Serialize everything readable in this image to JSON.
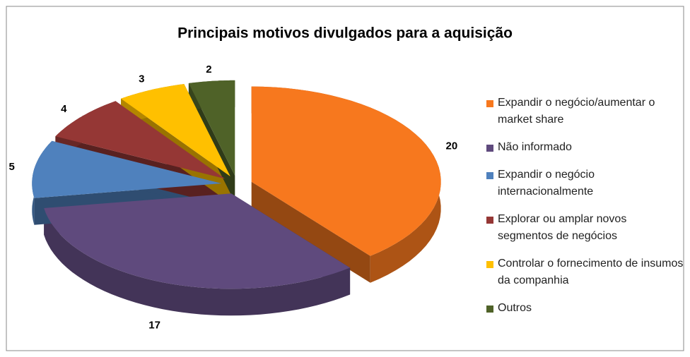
{
  "chart_data": {
    "type": "pie",
    "title": "Principais motivos divulgados para a aquisição",
    "categories": [
      "Expandir o negócio/aumentar o market share",
      "Não informado",
      "Expandir o negócio internacionalmente",
      "Explorar ou amplar novos segmentos de negócios",
      "Controlar o fornecimento de insumos da companhia",
      "Outros"
    ],
    "values": [
      20,
      17,
      5,
      4,
      3,
      2
    ],
    "colors": [
      "#f7781e",
      "#5f4a7d",
      "#4f81bd",
      "#953735",
      "#ffc000",
      "#4f6228"
    ],
    "legend": "right"
  }
}
